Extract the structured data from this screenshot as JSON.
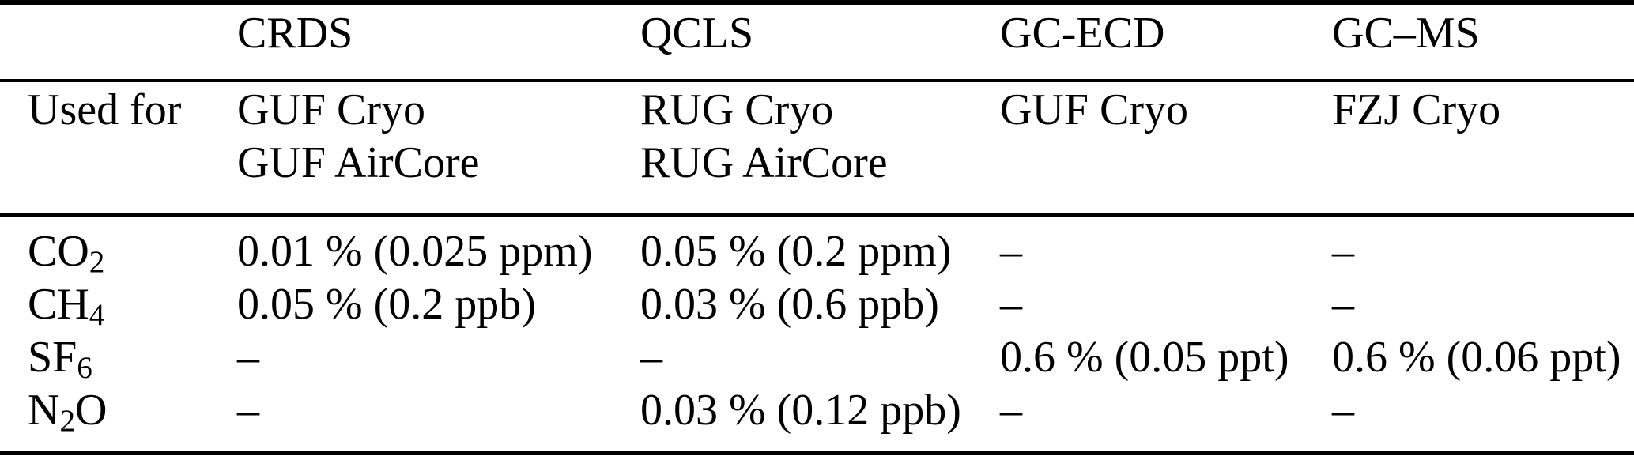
{
  "table": {
    "description": "Measurement technique precision table",
    "column_headers": [
      "",
      "CRDS",
      "QCLS",
      "GC-ECD",
      "GC–MS"
    ],
    "used_for": {
      "label": "Used for",
      "cells": [
        {
          "line1": "GUF Cryo",
          "line2": "GUF AirCore"
        },
        {
          "line1": "RUG Cryo",
          "line2": "RUG AirCore"
        },
        {
          "line1": "GUF Cryo",
          "line2": ""
        },
        {
          "line1": "FZJ Cryo",
          "line2": ""
        }
      ]
    },
    "species_rows": [
      {
        "formula_pre": "CO",
        "formula_sub": "2",
        "formula_post": "",
        "values": [
          "0.01 % (0.025 ppm)",
          "0.05 % (0.2 ppm)",
          "–",
          "–"
        ]
      },
      {
        "formula_pre": "CH",
        "formula_sub": "4",
        "formula_post": "",
        "values": [
          "0.05 % (0.2 ppb)",
          "0.03 % (0.6 ppb)",
          "–",
          "–"
        ]
      },
      {
        "formula_pre": "SF",
        "formula_sub": "6",
        "formula_post": "",
        "values": [
          "–",
          "–",
          "0.6 % (0.05 ppt)",
          "0.6 % (0.06 ppt)"
        ]
      },
      {
        "formula_pre": "N",
        "formula_sub": "2",
        "formula_post": "O",
        "values": [
          "–",
          "0.03 % (0.12 ppb)",
          "–",
          "–"
        ]
      }
    ],
    "colors": {
      "text": "#000000",
      "background": "#ffffff",
      "rule": "#000000"
    }
  }
}
